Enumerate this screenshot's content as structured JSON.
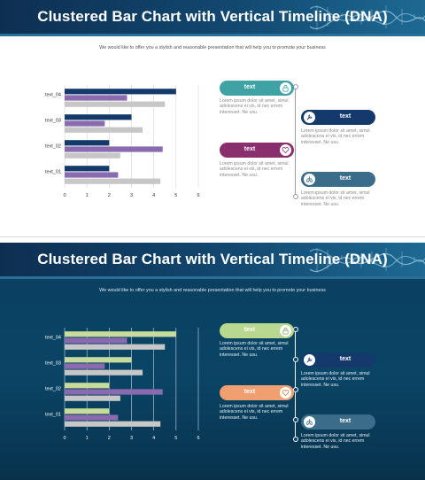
{
  "slides": [
    {
      "theme": "light",
      "title": "Clustered Bar Chart with Vertical Timeline (DNA)",
      "subtitle": "We would like to offer you a stylish and reasonable presentation that will help you to promote your business",
      "colors": [
        "#143a6b",
        "#8a6bb0",
        "#c7c7c7"
      ],
      "items": [
        {
          "label": "text",
          "icon": "lock-icon",
          "color": "#3fa3a5",
          "desc": "Lorem ipsum dolor sit amet, simul adolescens ei vis, id nec errem interesset. Ne usu."
        },
        {
          "label": "text",
          "icon": "wrench-icon",
          "color": "#143a6b",
          "desc": "Lorem ipsum dolor sit amet, simul adolescens ei vis, id nec errem interesset. Ne usu."
        },
        {
          "label": "text",
          "icon": "heart-icon",
          "color": "#8a2f6e",
          "desc": "Lorem ipsum dolor sit amet, simul adolescens ei vis, id nec errem interesset. Ne usu."
        },
        {
          "label": "text",
          "icon": "lungs-icon",
          "color": "#3b6c8a",
          "desc": "Lorem ipsum dolor sit amet, simul adolescens ei vis, id nec errem interesset. Ne usu."
        }
      ]
    },
    {
      "theme": "dark",
      "title": "Clustered Bar Chart with Vertical Timeline (DNA)",
      "subtitle": "We would like to offer you a stylish and reasonable presentation that will help you to promote your business",
      "colors": [
        "#c7dc9a",
        "#8a6bb0",
        "#c7c7c7"
      ],
      "items": [
        {
          "label": "text",
          "icon": "lock-icon",
          "color": "#b9d88f",
          "desc": "Lorem ipsum dolor sit amet, simul adolescens ei vis, id nec errem interesset. Ne usu."
        },
        {
          "label": "text",
          "icon": "wrench-icon",
          "color": "#143a6b",
          "desc": "Lorem ipsum dolor sit amet, simul adolescens ei vis, id nec errem interesset. Ne usu."
        },
        {
          "label": "text",
          "icon": "heart-icon",
          "color": "#f0a070",
          "desc": "Lorem ipsum dolor sit amet, simul adolescens ei vis, id nec errem interesset. Ne usu."
        },
        {
          "label": "text",
          "icon": "lungs-icon",
          "color": "#3b6c8a",
          "desc": "Lorem ipsum dolor sit amet, simul adolescens ei vis, id nec errem interesset. Ne usu."
        }
      ]
    }
  ],
  "chart_data": {
    "type": "bar",
    "orientation": "horizontal",
    "categories": [
      "text_01",
      "text_02",
      "text_03",
      "text_04"
    ],
    "series": [
      {
        "values": [
          2,
          2,
          3,
          5
        ]
      },
      {
        "values": [
          2.4,
          4.4,
          1.8,
          2.8
        ]
      },
      {
        "values": [
          4.3,
          2.5,
          3.5,
          4.5
        ]
      }
    ],
    "xlim": [
      0,
      6
    ],
    "xticks": [
      "0",
      "1",
      "2",
      "3",
      "4",
      "5",
      "6"
    ],
    "grid": true,
    "legend": "none"
  }
}
